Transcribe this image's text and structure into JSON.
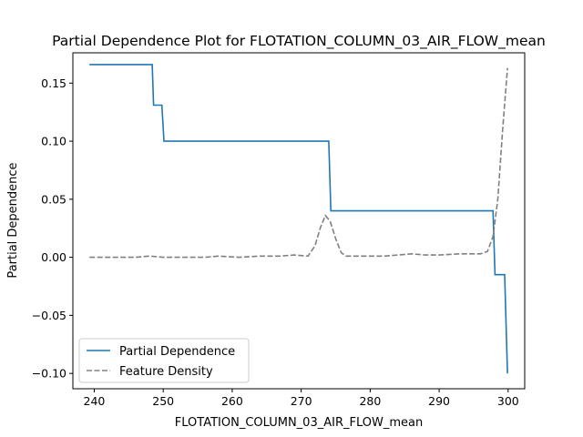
{
  "chart_data": {
    "type": "line",
    "title": "Partial Dependence Plot for FLOTATION_COLUMN_03_AIR_FLOW_mean",
    "xlabel": "FLOTATION_COLUMN_03_AIR_FLOW_mean",
    "ylabel": "Partial Dependence",
    "xlim": [
      236.9,
      302.4
    ],
    "ylim": [
      -0.1132,
      0.1761
    ],
    "xticks": [
      240,
      250,
      260,
      270,
      280,
      290,
      300
    ],
    "yticks": [
      -0.1,
      -0.05,
      0.0,
      0.05,
      0.1,
      0.15
    ],
    "xtick_labels": [
      "240",
      "250",
      "260",
      "270",
      "280",
      "290",
      "300"
    ],
    "ytick_labels": [
      "−0.10",
      "−0.05",
      "0.00",
      "0.05",
      "0.10",
      "0.15"
    ],
    "grid": false,
    "legend_position": "lower-left",
    "series": [
      {
        "name": "Partial Dependence",
        "color": "#1f77b4",
        "style": "solid",
        "points": [
          [
            239.3,
            0.166
          ],
          [
            248.4,
            0.166
          ],
          [
            248.6,
            0.131
          ],
          [
            249.8,
            0.131
          ],
          [
            250.1,
            0.1
          ],
          [
            274.0,
            0.1
          ],
          [
            274.3,
            0.04
          ],
          [
            297.8,
            0.04
          ],
          [
            298.1,
            -0.015
          ],
          [
            299.5,
            -0.015
          ],
          [
            299.9,
            -0.1
          ]
        ]
      },
      {
        "name": "Feature Density",
        "color": "#808080",
        "style": "dashed",
        "points": [
          [
            239.3,
            0.0
          ],
          [
            243.0,
            0.0
          ],
          [
            246.0,
            0.0
          ],
          [
            248.0,
            0.001
          ],
          [
            250.0,
            0.0
          ],
          [
            253.0,
            0.0
          ],
          [
            256.0,
            0.0
          ],
          [
            258.0,
            0.001
          ],
          [
            261.0,
            0.0
          ],
          [
            264.0,
            0.001
          ],
          [
            267.0,
            0.001
          ],
          [
            269.0,
            0.002
          ],
          [
            271.0,
            0.001
          ],
          [
            272.0,
            0.01
          ],
          [
            272.8,
            0.026
          ],
          [
            273.5,
            0.036
          ],
          [
            274.2,
            0.031
          ],
          [
            275.0,
            0.016
          ],
          [
            275.8,
            0.004
          ],
          [
            276.5,
            0.001
          ],
          [
            279.0,
            0.001
          ],
          [
            282.0,
            0.001
          ],
          [
            284.0,
            0.002
          ],
          [
            286.0,
            0.003
          ],
          [
            288.0,
            0.002
          ],
          [
            290.0,
            0.002
          ],
          [
            293.0,
            0.003
          ],
          [
            296.0,
            0.003
          ],
          [
            297.0,
            0.005
          ],
          [
            297.8,
            0.018
          ],
          [
            298.5,
            0.05
          ],
          [
            299.2,
            0.11
          ],
          [
            299.9,
            0.163
          ]
        ]
      }
    ]
  }
}
